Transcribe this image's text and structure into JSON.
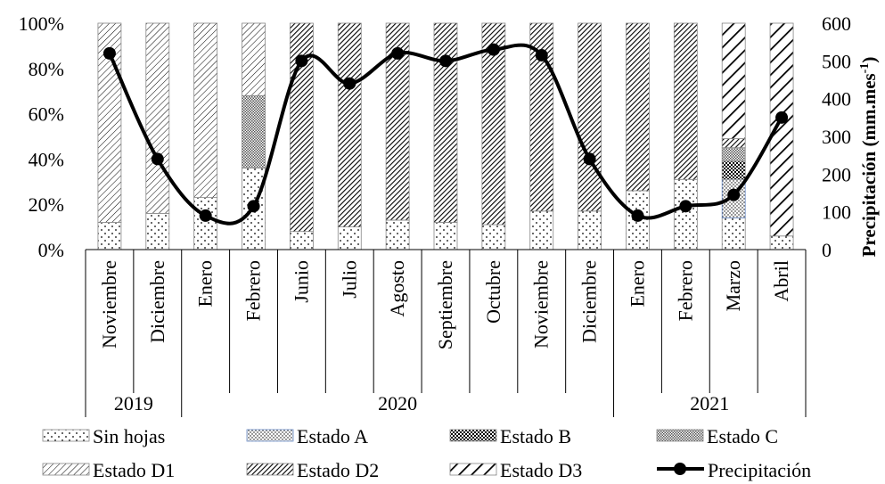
{
  "chart_data": {
    "type": "bar",
    "subtype": "stacked-percent-bar-with-line",
    "categories": [
      "Noviembre",
      "Diciembre",
      "Enero",
      "Febrero",
      "Junio",
      "Julio",
      "Agosto",
      "Septiembre",
      "Octubre",
      "Noviembre",
      "Diciembre",
      "Enero",
      "Febrero",
      "Marzo",
      "Abril"
    ],
    "years": [
      {
        "label": "2019",
        "span": 2
      },
      {
        "label": "2020",
        "span": 9
      },
      {
        "label": "2021",
        "span": 4
      }
    ],
    "series": [
      {
        "name": "Sin hojas",
        "values": [
          12,
          16,
          23,
          36,
          8,
          10,
          13,
          12,
          11,
          17,
          17,
          26,
          31,
          14,
          6
        ]
      },
      {
        "name": "Estado A",
        "values": [
          0,
          0,
          0,
          0,
          0,
          0,
          0,
          0,
          0,
          0,
          0,
          0,
          0,
          17,
          0
        ]
      },
      {
        "name": "Estado B",
        "values": [
          0,
          0,
          0,
          0,
          0,
          0,
          0,
          0,
          0,
          0,
          0,
          0,
          0,
          8,
          0
        ]
      },
      {
        "name": "Estado C",
        "values": [
          0,
          0,
          0,
          32,
          0,
          0,
          0,
          0,
          0,
          0,
          0,
          0,
          0,
          6,
          0
        ]
      },
      {
        "name": "Estado D1",
        "values": [
          88,
          84,
          77,
          32,
          0,
          0,
          0,
          0,
          0,
          0,
          0,
          0,
          0,
          0,
          0
        ]
      },
      {
        "name": "Estado D2",
        "values": [
          0,
          0,
          0,
          0,
          92,
          90,
          87,
          88,
          89,
          83,
          83,
          74,
          69,
          4,
          0
        ]
      },
      {
        "name": "Estado D3",
        "values": [
          0,
          0,
          0,
          0,
          0,
          0,
          0,
          0,
          0,
          0,
          0,
          0,
          0,
          51,
          94
        ]
      }
    ],
    "line": {
      "name": "Precipitación",
      "values": [
        520,
        240,
        90,
        115,
        500,
        440,
        520,
        500,
        530,
        515,
        240,
        90,
        115,
        145,
        350
      ]
    },
    "y_left": {
      "min": 0,
      "max": 100,
      "ticks": [
        "0%",
        "20%",
        "40%",
        "60%",
        "80%",
        "100%"
      ]
    },
    "y_right": {
      "min": 0,
      "max": 600,
      "ticks": [
        "0",
        "100",
        "200",
        "300",
        "400",
        "500",
        "600"
      ],
      "label_main": "Precipitación (mm.mes",
      "label_sup": "-1",
      "label_end": ")"
    },
    "legend_position": "bottom"
  }
}
